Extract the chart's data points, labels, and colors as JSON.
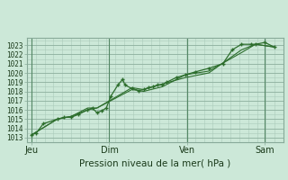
{
  "bg_color": "#cce8d8",
  "plot_bg_color": "#cce8d8",
  "grid_color_minor": "#aacbba",
  "grid_color_major": "#88aa99",
  "line_color": "#2d6e2d",
  "marker_color": "#2d6e2d",
  "ylabel_ticks": [
    1013,
    1014,
    1015,
    1016,
    1017,
    1018,
    1019,
    1020,
    1021,
    1022,
    1023
  ],
  "ylim": [
    1012.5,
    1023.8
  ],
  "xlabel": "Pression niveau de la mer( hPa )",
  "xtick_labels": [
    "Jeu",
    "Dim",
    "Ven",
    "Sam"
  ],
  "xtick_positions": [
    0.0,
    0.333,
    0.667,
    1.0
  ],
  "xlim": [
    -0.02,
    1.08
  ],
  "series1_x": [
    0.0,
    0.02,
    0.05,
    0.11,
    0.14,
    0.17,
    0.2,
    0.24,
    0.26,
    0.28,
    0.3,
    0.32,
    0.34,
    0.37,
    0.39,
    0.4,
    0.43,
    0.46,
    0.48,
    0.5,
    0.52,
    0.54,
    0.56,
    0.58,
    0.62,
    0.66,
    0.7,
    0.76,
    0.82,
    0.86,
    0.9,
    0.94,
    0.96,
    1.0,
    1.04
  ],
  "series1_y": [
    1013.3,
    1013.5,
    1014.5,
    1015.0,
    1015.2,
    1015.2,
    1015.5,
    1016.0,
    1016.2,
    1015.7,
    1015.9,
    1016.2,
    1017.5,
    1018.7,
    1019.3,
    1018.7,
    1018.3,
    1018.1,
    1018.2,
    1018.4,
    1018.5,
    1018.7,
    1018.7,
    1019.0,
    1019.5,
    1019.8,
    1020.1,
    1020.5,
    1021.0,
    1022.5,
    1023.1,
    1023.1,
    1023.1,
    1023.3,
    1022.8
  ],
  "series2_x": [
    0.0,
    0.11,
    0.17,
    0.24,
    0.28,
    0.43,
    0.48,
    0.56,
    0.66,
    0.76,
    0.9,
    0.96,
    1.04
  ],
  "series2_y": [
    1013.3,
    1015.0,
    1015.3,
    1016.0,
    1016.2,
    1018.4,
    1018.2,
    1018.8,
    1019.5,
    1020.0,
    1022.5,
    1023.1,
    1022.8
  ],
  "series3_x": [
    0.0,
    0.11,
    0.17,
    0.24,
    0.28,
    0.43,
    0.48,
    0.56,
    0.66,
    0.76,
    0.9,
    0.96,
    1.04
  ],
  "series3_y": [
    1013.3,
    1015.0,
    1015.3,
    1016.2,
    1016.2,
    1018.2,
    1018.0,
    1018.5,
    1019.8,
    1020.2,
    1022.2,
    1023.1,
    1022.8
  ],
  "vlines_x": [
    0.0,
    0.333,
    0.667,
    1.0
  ],
  "figsize": [
    3.2,
    2.0
  ],
  "dpi": 100
}
